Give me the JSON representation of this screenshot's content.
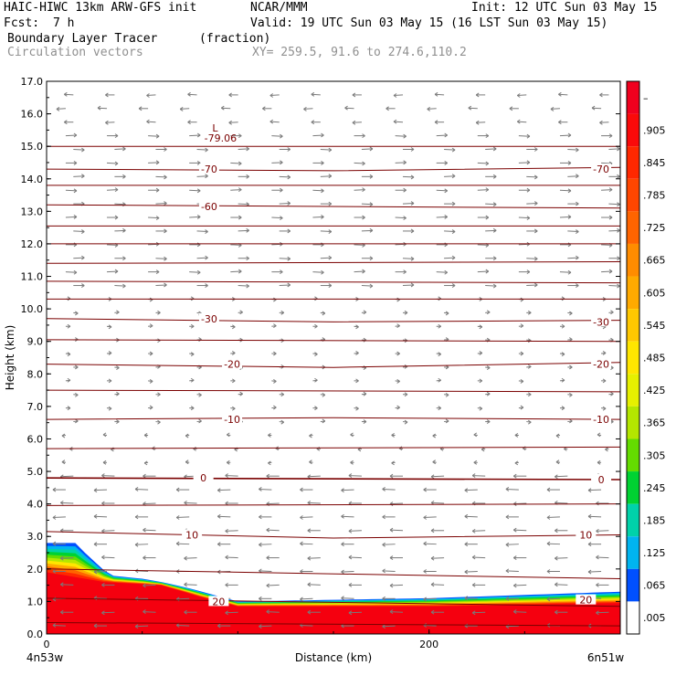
{
  "header": {
    "model": "HAIC-HIWC 13km ARW-GFS init",
    "org": "NCAR/MMM",
    "init": "Init: 12 UTC Sun 03 May 15",
    "fcst_label": "Fcst:",
    "fcst_value": "7 h",
    "valid": "Valid: 19 UTC Sun 03 May 15 (16 LST Sun 03 May 15)",
    "field_name": "Boundary Layer Tracer",
    "field_units": "(fraction)",
    "vector_name": "Circulation vectors",
    "xy_range": "XY= 259.5, 91.6 to 274.6,110.2"
  },
  "chart_data": {
    "type": "heatmap",
    "ylabel": "Height (km)",
    "xlabel": "Distance (km)",
    "ylim": [
      0,
      17
    ],
    "xlim": [
      0,
      300
    ],
    "yticks": [
      0,
      1,
      2,
      3,
      4,
      5,
      6,
      7,
      8,
      9,
      10,
      11,
      12,
      13,
      14,
      15,
      16,
      17
    ],
    "ytick_labels": [
      "0.0",
      "1.0",
      "2.0",
      "3.0",
      "4.0",
      "5.0",
      "6.0",
      "7.0",
      "8.0",
      "9.0",
      "10.0",
      "11.0",
      "12.0",
      "13.0",
      "14.0",
      "15.0",
      "16.0",
      "17.0"
    ],
    "xticks": [
      0,
      200
    ],
    "xtick_labels": [
      "0",
      "200"
    ],
    "x_endpoint_labels": [
      "4n53w",
      "6n51w"
    ],
    "colorbar": {
      "labels": [
        "–",
        ".905",
        ".845",
        ".785",
        ".725",
        ".665",
        ".605",
        ".545",
        ".485",
        ".425",
        ".365",
        ".305",
        ".245",
        ".185",
        ".125",
        ".065",
        ".005"
      ],
      "colors": [
        "#f0001e",
        "#fa0a0a",
        "#ff2800",
        "#ff4600",
        "#ff6400",
        "#ff8c00",
        "#ffaa00",
        "#ffc800",
        "#ffe600",
        "#e6f000",
        "#b4e600",
        "#64dc00",
        "#00d232",
        "#00d2aa",
        "#00b4f0",
        "#0050ff",
        "#ffffff"
      ]
    },
    "tracer_top_km": [
      [
        0,
        2.8
      ],
      [
        15,
        2.8
      ],
      [
        20,
        2.5
      ],
      [
        33,
        1.8
      ],
      [
        50,
        1.7
      ],
      [
        60,
        1.6
      ],
      [
        75,
        1.4
      ],
      [
        100,
        1.0
      ],
      [
        200,
        1.1
      ],
      [
        300,
        1.3
      ]
    ],
    "tracer_core_top_km": [
      [
        0,
        1.9
      ],
      [
        30,
        1.6
      ],
      [
        60,
        1.5
      ],
      [
        80,
        1.15
      ],
      [
        100,
        0.85
      ],
      [
        200,
        0.85
      ],
      [
        300,
        0.95
      ]
    ],
    "isotherms": [
      {
        "temp": 30,
        "heights": [
          [
            0,
            0.35
          ],
          [
            300,
            0.25
          ]
        ]
      },
      {
        "temp": 20,
        "heights": [
          [
            0,
            1.1
          ],
          [
            300,
            0.85
          ]
        ]
      },
      {
        "temp": 10,
        "heights": [
          [
            0,
            3.15
          ],
          [
            150,
            2.95
          ],
          [
            300,
            3.05
          ]
        ]
      },
      {
        "temp": 0,
        "heights": [
          [
            0,
            4.8
          ],
          [
            300,
            4.75
          ]
        ]
      },
      {
        "temp": -10,
        "heights": [
          [
            0,
            6.6
          ],
          [
            150,
            6.65
          ],
          [
            300,
            6.6
          ]
        ]
      },
      {
        "temp": -20,
        "heights": [
          [
            0,
            8.3
          ],
          [
            150,
            8.2
          ],
          [
            300,
            8.35
          ]
        ]
      },
      {
        "temp": -30,
        "heights": [
          [
            0,
            9.7
          ],
          [
            150,
            9.6
          ],
          [
            300,
            9.65
          ]
        ]
      },
      {
        "temp": -70,
        "heights": [
          [
            0,
            14.3
          ],
          [
            150,
            14.25
          ],
          [
            300,
            14.35
          ]
        ]
      }
    ],
    "contour_labels": [
      {
        "text": "-70",
        "x": 85,
        "y": 14.3
      },
      {
        "text": "-70",
        "x": 290,
        "y": 14.3
      },
      {
        "text": "-60",
        "x": 85,
        "y": 13.15
      },
      {
        "text": "-30",
        "x": 85,
        "y": 9.7
      },
      {
        "text": "-30",
        "x": 290,
        "y": 9.6
      },
      {
        "text": "-20",
        "x": 97,
        "y": 8.3
      },
      {
        "text": "-20",
        "x": 290,
        "y": 8.3
      },
      {
        "text": "-10",
        "x": 97,
        "y": 6.6
      },
      {
        "text": "-10",
        "x": 290,
        "y": 6.6
      },
      {
        "text": "0",
        "x": 82,
        "y": 4.8
      },
      {
        "text": "0",
        "x": 290,
        "y": 4.75
      },
      {
        "text": "10",
        "x": 76,
        "y": 3.05
      },
      {
        "text": "10",
        "x": 282,
        "y": 3.05
      },
      {
        "text": "20",
        "x": 90,
        "y": 1.0
      },
      {
        "text": "20",
        "x": 282,
        "y": 1.05
      }
    ],
    "low_marker": {
      "label": "L",
      "value": "-79.06",
      "x": 90,
      "y": 15.4
    }
  }
}
